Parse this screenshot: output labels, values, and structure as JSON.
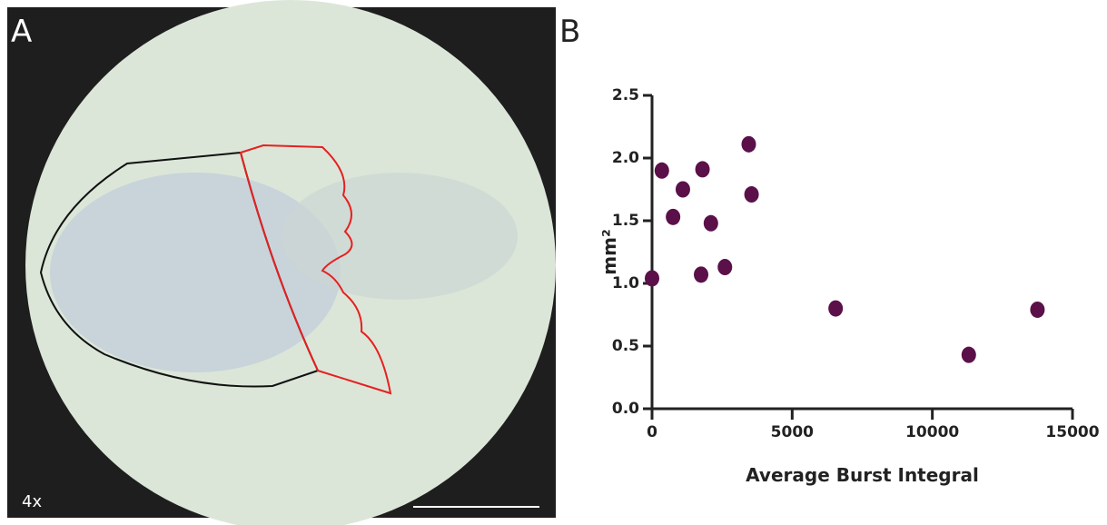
{
  "figure": {
    "panel_a_label": "A",
    "magnification": "4x",
    "panel_b_label": "B"
  },
  "chart_data": {
    "type": "scatter",
    "x_label": "Average Burst  Integral",
    "y_label": "mm²",
    "color": "#5b1049",
    "x": [
      0,
      350,
      750,
      1100,
      1800,
      1750,
      2100,
      2600,
      3450,
      3550,
      6550,
      11300,
      13750
    ],
    "values": [
      1.04,
      1.9,
      1.53,
      1.75,
      1.91,
      1.07,
      1.48,
      1.13,
      2.11,
      1.71,
      0.8,
      0.43,
      0.79
    ],
    "xlim": [
      0,
      15000
    ],
    "xticks": [
      0,
      5000,
      10000,
      15000
    ],
    "ylim": [
      0,
      2.5
    ],
    "yticks": [
      {
        "value": 0,
        "label": "0.0"
      },
      0.5,
      {
        "value": 1,
        "label": "1.0"
      },
      1.5,
      {
        "value": 2,
        "label": "2.0"
      },
      2.5
    ]
  }
}
